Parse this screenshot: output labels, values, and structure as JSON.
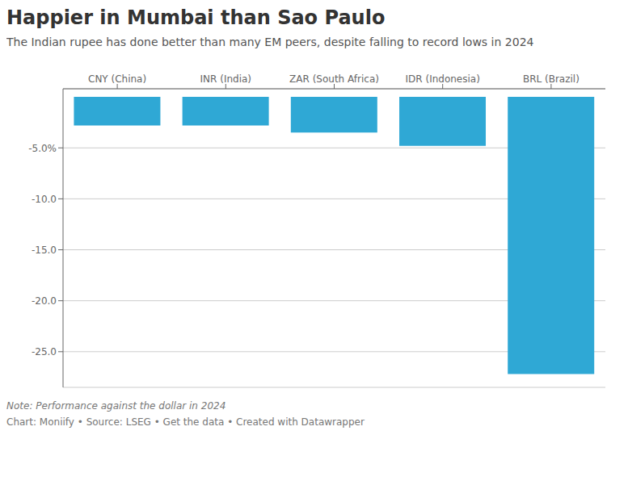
{
  "chart_data": {
    "type": "bar",
    "title": "Happier in Mumbai than Sao Paulo",
    "subtitle": "The Indian rupee has done better than many EM peers, despite falling to record lows in 2024",
    "annotations": [
      "Note: Performance against the dollar in 2024",
      "Chart: Moniify • Source: LSEG • Get the data • Created with Datawrapper"
    ],
    "categories": [
      "CNY (China)",
      "INR (India)",
      "ZAR (South Africa)",
      "IDR (Indonesia)",
      "BRL (Brazil)"
    ],
    "values": [
      -2.8,
      -2.8,
      -3.5,
      -4.8,
      -27.2
    ],
    "color": "#2fa8d5",
    "ylim": [
      -28.5,
      0.8
    ],
    "yticks": [
      {
        "value": -5.0,
        "label": "-5.0%"
      },
      {
        "value": -10.0,
        "label": "-10.0"
      },
      {
        "value": -15.0,
        "label": "-15.0"
      },
      {
        "value": -20.0,
        "label": "-20.0"
      },
      {
        "value": -25.0,
        "label": "-25.0"
      }
    ],
    "grid": true
  }
}
